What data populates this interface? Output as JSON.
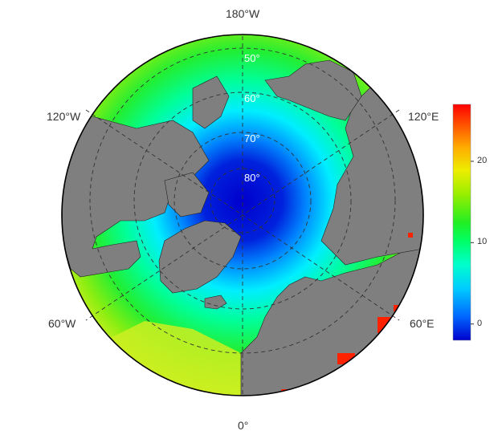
{
  "map": {
    "projection": "polar stereographic (north)",
    "longitude_labels": {
      "top": "180°W",
      "upper_left": "120°W",
      "upper_right": "120°E",
      "lower_left": "60°W",
      "lower_right": "60°E",
      "bottom": "0°"
    },
    "latitude_labels": [
      "50°",
      "60°",
      "70°",
      "80°"
    ],
    "land_color": "#7f7f7f",
    "graticule_style": "dashed"
  },
  "colorbar": {
    "ticks": [
      "0",
      "10",
      "20"
    ],
    "tick_values": [
      0,
      10,
      20
    ],
    "range": [
      -2,
      27
    ],
    "colors": [
      "#0000cc",
      "#0066ff",
      "#00ccff",
      "#00ffcc",
      "#00ff66",
      "#22ee22",
      "#99ee00",
      "#eeee00",
      "#ffaa00",
      "#ff5500",
      "#ff0000"
    ]
  }
}
